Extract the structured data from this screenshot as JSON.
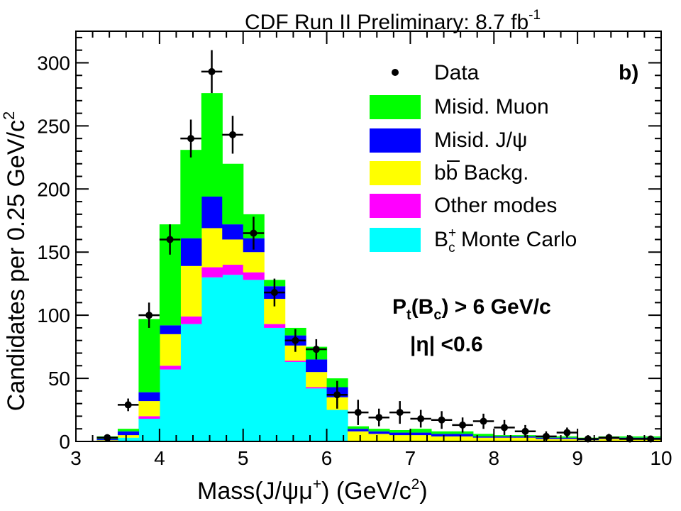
{
  "chart_data": {
    "type": "bar",
    "stacked": true,
    "title_main": "CDF Run II Preliminary: 8.7 fb",
    "title_sup": "-1",
    "panel_label": "b)",
    "ylabel_main": "Candidates per 0.25 GeV/c",
    "ylabel_sup": "2",
    "xlabel_main": "Mass(J/ψμ",
    "xlabel_sup1": "+",
    "xlabel_mid": ")   (GeV/c",
    "xlabel_sup2": "2",
    "xlabel_end": ")",
    "xlim": [
      3,
      10
    ],
    "ylim": [
      0,
      325
    ],
    "xticks": [
      "3",
      "4",
      "5",
      "6",
      "7",
      "8",
      "9",
      "10"
    ],
    "yticks": [
      "0",
      "50",
      "100",
      "150",
      "200",
      "250",
      "300"
    ],
    "bin_edges": [
      3.25,
      3.5,
      3.75,
      4.0,
      4.25,
      4.5,
      4.75,
      5.0,
      5.25,
      5.5,
      5.75,
      6.0,
      6.25,
      6.5,
      6.75,
      7.0,
      7.25,
      7.5,
      7.75,
      8.0,
      8.25,
      8.5,
      8.75,
      9.0,
      9.25,
      9.5,
      9.75,
      10.0
    ],
    "series": [
      {
        "name": "B_c Monte Carlo",
        "color": "#00ffff",
        "values": [
          0,
          3,
          18,
          57,
          93,
          130,
          132,
          128,
          90,
          63,
          42,
          25,
          0,
          0,
          0,
          0,
          0,
          0,
          0,
          0,
          0,
          0,
          0,
          0,
          0,
          0,
          0
        ]
      },
      {
        "name": "Other modes",
        "color": "#ff00ff",
        "values": [
          0,
          0,
          2,
          3,
          6,
          8,
          8,
          6,
          3,
          1,
          1,
          0,
          0,
          0,
          0,
          0,
          0,
          0,
          0,
          0,
          0,
          0,
          0,
          0,
          0,
          0,
          0
        ]
      },
      {
        "name": "bb Backg.",
        "color": "#ffff00",
        "values": [
          1,
          2,
          12,
          25,
          40,
          31,
          20,
          16,
          20,
          12,
          12,
          10,
          8,
          6,
          5,
          5,
          4,
          4,
          3,
          3,
          3,
          2,
          2,
          1,
          2,
          2,
          2
        ]
      },
      {
        "name": "Misid. J/psi",
        "color": "#0000ff",
        "values": [
          1,
          3,
          7,
          7,
          22,
          25,
          12,
          11,
          10,
          8,
          10,
          8,
          2,
          2,
          2,
          2,
          2,
          2,
          1,
          1,
          1,
          1,
          1,
          1,
          1,
          1,
          1
        ]
      },
      {
        "name": "Misid. Muon",
        "color": "#00ff00",
        "values": [
          2,
          2,
          58,
          80,
          70,
          82,
          48,
          19,
          5,
          6,
          10,
          7,
          2,
          2,
          2,
          3,
          2,
          2,
          2,
          1,
          1,
          1,
          1,
          1,
          1,
          1,
          1
        ]
      }
    ],
    "data_points": [
      {
        "x": 3.375,
        "y": 3,
        "err": 2
      },
      {
        "x": 3.625,
        "y": 29,
        "err": 5
      },
      {
        "x": 3.875,
        "y": 100,
        "err": 10
      },
      {
        "x": 4.125,
        "y": 160,
        "err": 12
      },
      {
        "x": 4.375,
        "y": 240,
        "err": 15
      },
      {
        "x": 4.625,
        "y": 293,
        "err": 17
      },
      {
        "x": 4.875,
        "y": 243,
        "err": 15
      },
      {
        "x": 5.125,
        "y": 165,
        "err": 13
      },
      {
        "x": 5.375,
        "y": 118,
        "err": 11
      },
      {
        "x": 5.625,
        "y": 80,
        "err": 9
      },
      {
        "x": 5.875,
        "y": 73,
        "err": 8
      },
      {
        "x": 6.125,
        "y": 37,
        "err": 11
      },
      {
        "x": 6.375,
        "y": 23,
        "err": 10
      },
      {
        "x": 6.625,
        "y": 19,
        "err": 7
      },
      {
        "x": 6.875,
        "y": 23,
        "err": 9
      },
      {
        "x": 7.125,
        "y": 18,
        "err": 7
      },
      {
        "x": 7.375,
        "y": 17,
        "err": 7
      },
      {
        "x": 7.625,
        "y": 13,
        "err": 6
      },
      {
        "x": 7.875,
        "y": 16,
        "err": 6
      },
      {
        "x": 8.125,
        "y": 11,
        "err": 6
      },
      {
        "x": 8.375,
        "y": 8,
        "err": 5
      },
      {
        "x": 8.625,
        "y": 4,
        "err": 4
      },
      {
        "x": 8.875,
        "y": 7,
        "err": 4
      },
      {
        "x": 9.125,
        "y": 2,
        "err": 3
      },
      {
        "x": 9.375,
        "y": 3,
        "err": 3
      },
      {
        "x": 9.625,
        "y": 2,
        "err": 3
      },
      {
        "x": 9.875,
        "y": 2,
        "err": 2
      }
    ],
    "legend": [
      {
        "label": "Data",
        "kind": "marker",
        "color": "#000000"
      },
      {
        "label": "Misid. Muon",
        "kind": "box",
        "color": "#00ff00"
      },
      {
        "label": "Misid. J/ψ",
        "kind": "box",
        "color": "#0000ff"
      },
      {
        "label": "bb Backg.",
        "kind": "box",
        "color": "#ffff00",
        "overline_second_b": true
      },
      {
        "label": "Other modes",
        "kind": "box",
        "color": "#ff00ff"
      },
      {
        "label": "B",
        "sub": "c",
        "sup": "+",
        "rest": " Monte Carlo",
        "kind": "box",
        "color": "#00ffff"
      }
    ],
    "annotations": {
      "pt_main": "P",
      "pt_sub1": "t",
      "pt_mid": "(B",
      "pt_sub2": "c",
      "pt_end": ") > 6 GeV/c",
      "eta": "|η| <0.6"
    }
  }
}
